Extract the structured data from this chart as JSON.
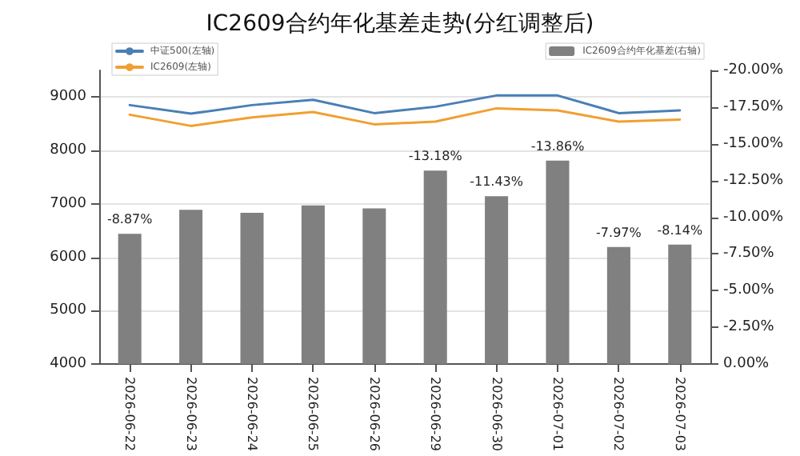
{
  "chart_data": {
    "type": "line",
    "title": "IC2609合约年化基差走势(分红调整后)",
    "categories": [
      "2026-06-22",
      "2026-06-23",
      "2026-06-24",
      "2026-06-25",
      "2026-06-26",
      "2026-06-29",
      "2026-06-30",
      "2026-07-01",
      "2026-07-02",
      "2026-07-03"
    ],
    "series": [
      {
        "name": "中证500(左轴)",
        "color": "#4a7fb5",
        "values": [
          8850,
          8690,
          8850,
          8950,
          8700,
          8820,
          9030,
          9030,
          8700,
          8750
        ]
      },
      {
        "name": "IC2609(左轴)",
        "color": "#f0a030",
        "values": [
          8670,
          8460,
          8620,
          8720,
          8490,
          8540,
          8790,
          8750,
          8540,
          8580
        ]
      },
      {
        "name": "IC2609合约年化基差(右轴)",
        "type": "bar",
        "axis": "y2",
        "color": "#808080",
        "values": [
          -8.87,
          -10.5,
          -10.3,
          -10.8,
          -10.6,
          -13.18,
          -11.43,
          -13.86,
          -7.97,
          -8.14
        ],
        "value_labels": [
          "-8.87%",
          null,
          null,
          null,
          null,
          "-13.18%",
          "-11.43%",
          "-13.86%",
          "-7.97%",
          "-8.14%"
        ]
      }
    ],
    "ylim": [
      4000,
      9500
    ],
    "yticks": [
      4000,
      5000,
      6000,
      7000,
      8000,
      9000
    ],
    "y2lim": [
      0,
      -20
    ],
    "y2ticks": [
      {
        "value": 0,
        "label": "0.00%"
      },
      {
        "value": -2.5,
        "label": "-2.50%"
      },
      {
        "value": -5,
        "label": "-5.00%"
      },
      {
        "value": -7.5,
        "label": "-7.50%"
      },
      {
        "value": -10,
        "label": "-10.00%"
      },
      {
        "value": -12.5,
        "label": "-12.50%"
      },
      {
        "value": -15,
        "label": "-15.00%"
      },
      {
        "value": -17.5,
        "label": "-17.50%"
      },
      {
        "value": -20,
        "label": "-20.00%"
      }
    ],
    "grid": "y",
    "legend": "top",
    "marker": "none",
    "line_style": "solid"
  }
}
